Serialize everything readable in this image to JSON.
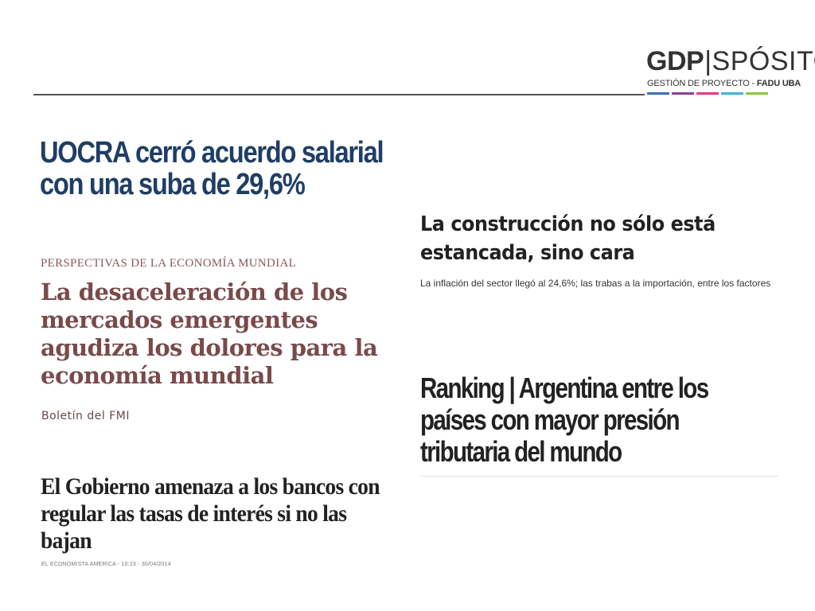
{
  "logo": {
    "brand_bold": "GDP",
    "separator": "|",
    "brand_light": "SPÓSITO",
    "subtitle_regular": "GESTIÓN DE PROYECTO - ",
    "subtitle_bold": "FADU UBA",
    "bar_colors": [
      "#3d6fb6",
      "#8b3f96",
      "#e6387e",
      "#3fb3e0",
      "#8cc63f"
    ]
  },
  "clippings": {
    "uocra": {
      "headline": "UOCRA cerró acuerdo salarial con una suba de 29,6%"
    },
    "fmi": {
      "kicker": "PERSPECTIVAS DE LA ECONOMÍA MUNDIAL",
      "headline": "La desaceleración de los mercados emergentes agudiza los dolores para la economía mundial",
      "source": "Boletín del FMI"
    },
    "gobierno": {
      "headline": "El Gobierno amenaza a los bancos con regular las tasas de interés si no las bajan",
      "meta": "EL ECONOMISTA AMERICA - 10:23 - 30/04/2014"
    },
    "construccion": {
      "headline": "La construcción no sólo está estancada, sino cara",
      "subhead": "La inflación del sector llegó al 24,6%; las trabas a la importación, entre los factores"
    },
    "ranking": {
      "headline": "Ranking | Argentina entre los países con mayor presión tributaria del mundo"
    }
  }
}
